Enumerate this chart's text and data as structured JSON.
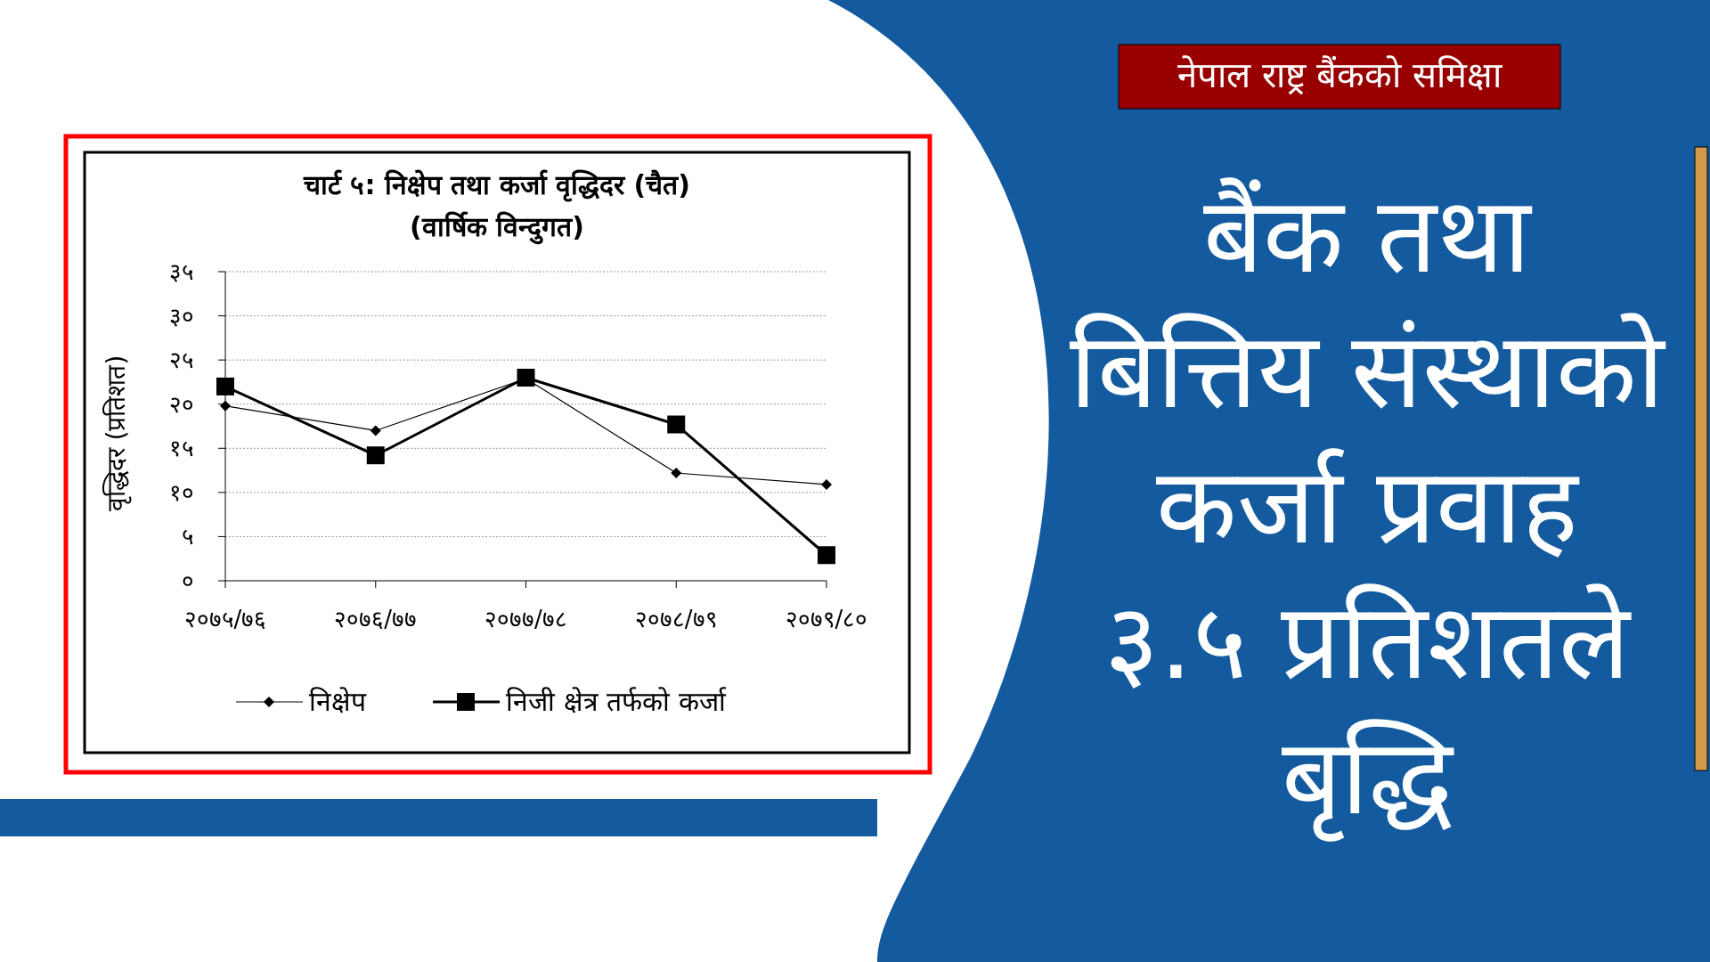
{
  "chart_data": {
    "type": "line",
    "title": "चार्ट ५: निक्षेप तथा कर्जा वृद्धिदर (चैत)",
    "subtitle": "(वार्षिक विन्दुगत)",
    "ylabel": "वृद्धिदर (प्रतिशत)",
    "categories": [
      "२०७५/७६",
      "२०७६/७७",
      "२०७७/७८",
      "२०७८/७९",
      "२०७९/८०"
    ],
    "series": [
      {
        "name": "निक्षेप",
        "color": "#000000",
        "marker": "diamond",
        "values": [
          19.8,
          17.0,
          22.9,
          12.2,
          10.9
        ]
      },
      {
        "name": "निजी क्षेत्र तर्फको कर्जा",
        "color": "#000000",
        "marker": "square",
        "values": [
          22.0,
          14.2,
          23.0,
          17.7,
          2.9
        ]
      }
    ],
    "ylim": [
      0,
      35
    ],
    "yticks": [
      {
        "value": 0,
        "label": "०"
      },
      {
        "value": 5,
        "label": "५"
      },
      {
        "value": 10,
        "label": "१०"
      },
      {
        "value": 15,
        "label": "१५"
      },
      {
        "value": 20,
        "label": "२०"
      },
      {
        "value": 25,
        "label": "२५"
      },
      {
        "value": 30,
        "label": "३०"
      },
      {
        "value": 35,
        "label": "३५"
      }
    ],
    "grid": "y",
    "legend": "bottom",
    "line_style": "solid",
    "annotations": [
      "नेपाल राष्ट्र बैंकको समिक्षा",
      "बैंक तथा\nबित्तिय संस्थाको\nकर्जा प्रवाह\n३.५ प्रतिशतले\nबृद्धि"
    ]
  }
}
